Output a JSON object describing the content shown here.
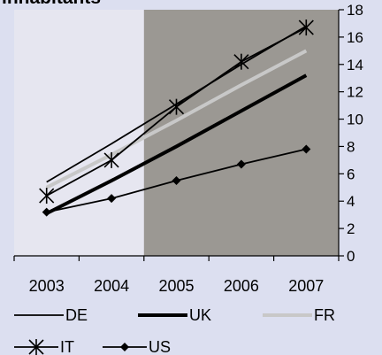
{
  "chart_data": {
    "type": "line",
    "title": "inhabitants",
    "categories": [
      "2003",
      "2004",
      "2005",
      "2006",
      "2007"
    ],
    "ylim": [
      0,
      18
    ],
    "yticks": [
      0,
      2,
      4,
      6,
      8,
      10,
      12,
      14,
      16,
      18
    ],
    "y_axis_side": "right",
    "grid": false,
    "legend_position": "bottom",
    "highlight": {
      "from_category": "2005",
      "to_category": "2007",
      "color": "#9b9893"
    },
    "series": [
      {
        "name": "DE",
        "style": "thin",
        "color": "#000000",
        "values": [
          5.4,
          8.2,
          11.1,
          14.0,
          16.8
        ]
      },
      {
        "name": "UK",
        "style": "thick",
        "color": "#000000",
        "values": [
          3.1,
          5.5,
          8.0,
          10.6,
          13.2
        ]
      },
      {
        "name": "FR",
        "style": "light",
        "color": "#c8c8c8",
        "values": [
          5.0,
          7.4,
          9.9,
          12.5,
          15.0
        ]
      },
      {
        "name": "IT",
        "style": "star",
        "color": "#000000",
        "values": [
          4.4,
          7.0,
          10.9,
          14.2,
          16.7
        ]
      },
      {
        "name": "US",
        "style": "diamond",
        "color": "#000000",
        "values": [
          3.2,
          4.2,
          5.5,
          6.7,
          7.8
        ]
      }
    ]
  }
}
